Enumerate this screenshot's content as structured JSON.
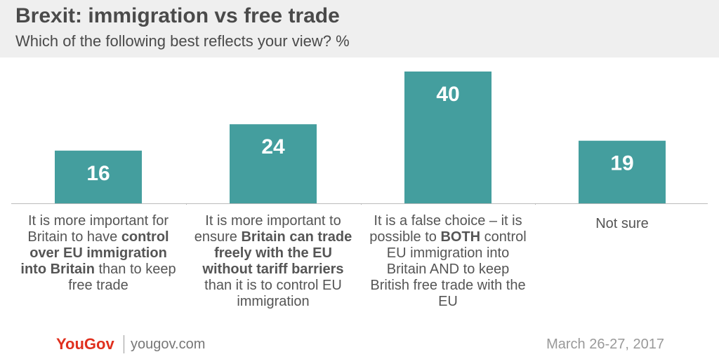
{
  "header": {
    "title": "Brexit: immigration vs free trade",
    "subtitle": "Which of the following best reflects your view? %"
  },
  "colors": {
    "bar": "#449e9e",
    "header_bg": "#efefef",
    "brand": "#e0301e"
  },
  "chart_data": {
    "type": "bar",
    "title": "Brexit: immigration vs free trade",
    "subtitle": "Which of the following best reflects your view? %",
    "categories": [
      "It is more important for Britain to have control over EU immigration into Britain than to keep free trade",
      "It is more important to ensure Britain can trade freely with the EU without tariff barriers than it is to control EU immigration",
      "It is a false choice – it is possible to BOTH control EU immigration into Britain AND to keep British free trade with the EU",
      "Not sure"
    ],
    "category_segments": [
      [
        {
          "text": "It is more important for Britain to have ",
          "bold": false
        },
        {
          "text": "control over EU immigration into Britain",
          "bold": true
        },
        {
          "text": " than to keep free trade",
          "bold": false
        }
      ],
      [
        {
          "text": "It is more important to ensure ",
          "bold": false
        },
        {
          "text": "Britain can trade freely with the EU without tariff barriers",
          "bold": true
        },
        {
          "text": " than it is to control EU immigration",
          "bold": false
        }
      ],
      [
        {
          "text": "It is a false choice – it is possible to ",
          "bold": false
        },
        {
          "text": "BOTH",
          "bold": true
        },
        {
          "text": " control EU immigration into Britain AND to keep British free trade with the EU",
          "bold": false
        }
      ],
      [
        {
          "text": "Not sure",
          "bold": false
        }
      ]
    ],
    "values": [
      16,
      24,
      40,
      19
    ],
    "ylim": [
      0,
      40
    ],
    "grid": false,
    "legend": "none"
  },
  "footer": {
    "logo": "YouGov",
    "site": "yougov.com",
    "date": "March 26-27, 2017"
  }
}
